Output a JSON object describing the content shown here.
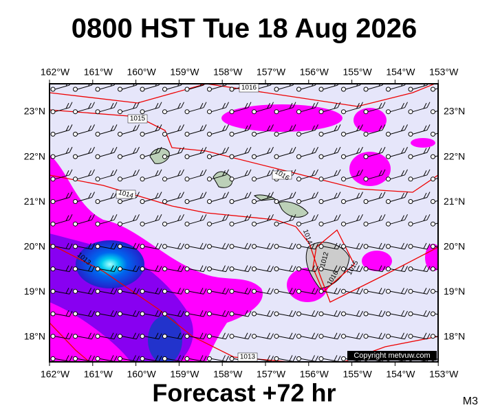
{
  "title": "0800 HST Tue 18 Aug 2026",
  "footer": "Forecast +72 hr",
  "model": "M3",
  "copyright": "Copyright metvuw.com",
  "longitude_labels": [
    "162°W",
    "161°W",
    "160°W",
    "159°W",
    "158°W",
    "157°W",
    "156°W",
    "155°W",
    "154°W",
    "153°W"
  ],
  "latitude_labels": [
    "23°N",
    "22°N",
    "21°N",
    "20°N",
    "19°N",
    "18°N"
  ],
  "isobar_labels": [
    "1016",
    "1015",
    "1016",
    "1014",
    "1014",
    "1013",
    "1012",
    "1016",
    "1015",
    "1013"
  ]
}
